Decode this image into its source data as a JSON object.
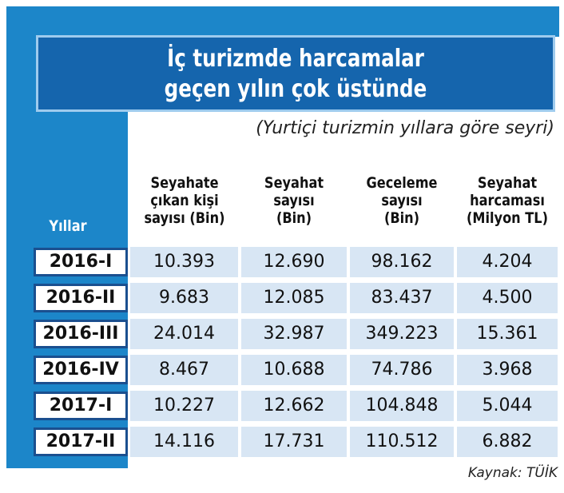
{
  "title": [
    "İç turizmde harcamalar",
    "geçen yılın çok üstünde"
  ],
  "subtitle": "(Yurtiçi turizmin yıllara göre seyri)",
  "table": {
    "header": [
      "Yıllar",
      [
        "Seyahate",
        "çıkan kişi",
        "sayısı (Bin)"
      ],
      [
        "Seyahat",
        "sayısı",
        "(Bin)"
      ],
      [
        "Geceleme",
        "sayısı",
        "(Bin)"
      ],
      [
        "Seyahat",
        "harcaması",
        "(Milyon TL)"
      ]
    ],
    "rows": [
      [
        "2016-I",
        "10.393",
        "12.690",
        "98.162",
        "4.204"
      ],
      [
        "2016-II",
        "9.683",
        "12.085",
        "83.437",
        "4.500"
      ],
      [
        "2016-III",
        "24.014",
        "32.987",
        "349.223",
        "15.361"
      ],
      [
        "2016-IV",
        "8.467",
        "10.688",
        "74.786",
        "3.968"
      ],
      [
        "2017-I",
        "10.227",
        "12.662",
        "104.848",
        "5.044"
      ],
      [
        "2017-II",
        "14.116",
        "17.731",
        "110.512",
        "6.882"
      ]
    ]
  },
  "source": "Kaynak: TÜİK"
}
